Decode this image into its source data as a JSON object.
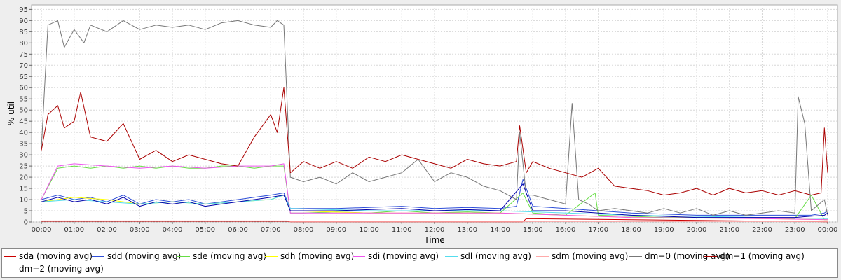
{
  "chart_data": {
    "type": "line",
    "xlabel": "Time",
    "ylabel": "% util",
    "ylim": [
      0,
      97
    ],
    "yticks": [
      0,
      5,
      10,
      15,
      20,
      25,
      30,
      35,
      40,
      45,
      50,
      55,
      60,
      65,
      70,
      75,
      80,
      85,
      90,
      95
    ],
    "xlim": [
      -0.3,
      24.3
    ],
    "xticks": [
      "00:00",
      "01:00",
      "02:00",
      "03:00",
      "04:00",
      "05:00",
      "06:00",
      "07:00",
      "08:00",
      "09:00",
      "10:00",
      "11:00",
      "12:00",
      "13:00",
      "14:00",
      "15:00",
      "16:00",
      "17:00",
      "18:00",
      "19:00",
      "20:00",
      "21:00",
      "22:00",
      "23:00",
      "00:00"
    ],
    "grid": true,
    "legend_position": "bottom",
    "series": [
      {
        "name": "sda (moving avg)",
        "color": "#cc0000",
        "x": [
          0,
          7.5,
          7.6,
          14.7,
          14.8,
          24
        ],
        "y": [
          0.3,
          0.3,
          0.1,
          0.1,
          1.5,
          0.1
        ]
      },
      {
        "name": "sdd (moving avg)",
        "color": "#2d4ed8",
        "x": [
          0,
          0.5,
          1,
          1.5,
          2,
          2.5,
          3,
          3.5,
          4,
          4.5,
          5,
          5.5,
          6,
          6.5,
          7,
          7.4,
          7.6,
          8,
          9,
          10,
          11,
          12,
          13,
          14,
          14.5,
          14.7,
          15,
          16,
          17,
          18,
          19,
          20,
          21,
          22,
          23,
          23.5,
          23.9,
          24
        ],
        "y": [
          10,
          12,
          10,
          11,
          9,
          12,
          8,
          10,
          9,
          10,
          8,
          9,
          10,
          11,
          12,
          13,
          6,
          6,
          6,
          6.5,
          7,
          6,
          6.5,
          6,
          7,
          19,
          7,
          6,
          5,
          4,
          3.5,
          3,
          3,
          3,
          3,
          3,
          4,
          5
        ]
      },
      {
        "name": "sde (moving avg)",
        "color": "#66dd44",
        "x": [
          0,
          0.5,
          1,
          1.5,
          2,
          2.5,
          3,
          3.5,
          4,
          4.5,
          5,
          5.5,
          6,
          6.5,
          7,
          7.4,
          7.6,
          8,
          9,
          10,
          11,
          12,
          13,
          14,
          14.7,
          15,
          16,
          16.9,
          17,
          18,
          19,
          20,
          21,
          22,
          23,
          23.5,
          23.9,
          24
        ],
        "y": [
          10,
          24,
          25,
          24,
          25,
          24,
          25,
          24,
          25,
          24,
          24,
          25,
          25,
          24,
          25,
          25,
          4,
          4,
          4.5,
          4,
          5,
          4,
          4.5,
          4,
          13,
          4,
          3,
          13,
          3,
          2.5,
          2,
          2,
          1.8,
          1.5,
          1.5,
          12,
          1,
          1
        ]
      },
      {
        "name": "sdh (moving avg)",
        "color": "#ffff00",
        "x": [
          0,
          1,
          2,
          3,
          4,
          5,
          6,
          7,
          7.4,
          7.6,
          10,
          14,
          18,
          22,
          24
        ],
        "y": [
          9,
          11,
          10,
          8,
          9,
          8,
          9,
          10,
          12,
          5,
          4,
          4,
          2,
          1.5,
          1
        ]
      },
      {
        "name": "sdi (moving avg)",
        "color": "#ee55ee",
        "x": [
          0,
          0.5,
          1,
          2,
          3,
          4,
          5,
          6,
          7,
          7.4,
          7.6,
          10,
          14,
          18,
          22,
          24
        ],
        "y": [
          10,
          25,
          26,
          25,
          24,
          25,
          24,
          25,
          25,
          26,
          4,
          4,
          4,
          2,
          1.5,
          1
        ]
      },
      {
        "name": "sdl (moving avg)",
        "color": "#55ddee",
        "x": [
          0,
          1,
          2,
          3,
          4,
          5,
          6,
          7,
          7.4,
          7.6,
          10,
          14,
          18,
          22,
          24
        ],
        "y": [
          9,
          10,
          9,
          8,
          9,
          8,
          9,
          10,
          12,
          6,
          5,
          5,
          3,
          2,
          1.5
        ]
      },
      {
        "name": "sdm (moving avg)",
        "color": "#ffaaaa",
        "x": [
          0,
          7.5,
          7.6,
          24
        ],
        "y": [
          0.5,
          0.5,
          0.2,
          0.2
        ]
      },
      {
        "name": "dm−0 (moving avg)",
        "color": "#777777",
        "x": [
          0,
          0.2,
          0.5,
          0.7,
          1,
          1.3,
          1.5,
          2,
          2.5,
          3,
          3.5,
          4,
          4.5,
          5,
          5.5,
          6,
          6.5,
          7,
          7.2,
          7.4,
          7.6,
          8,
          8.5,
          9,
          9.5,
          10,
          10.5,
          11,
          11.5,
          12,
          12.5,
          13,
          13.5,
          14,
          14.5,
          14.6,
          14.8,
          15,
          15.5,
          16,
          16.2,
          16.4,
          16.7,
          17,
          17.5,
          18,
          18.5,
          19,
          19.5,
          20,
          20.5,
          21,
          21.5,
          22,
          22.5,
          23,
          23.1,
          23.3,
          23.5,
          23.9,
          24
        ],
        "y": [
          33,
          88,
          90,
          78,
          86,
          80,
          88,
          85,
          90,
          86,
          88,
          87,
          88,
          86,
          89,
          90,
          88,
          87,
          90,
          88,
          20,
          18,
          20,
          17,
          22,
          18,
          20,
          22,
          28,
          18,
          22,
          20,
          16,
          14,
          10,
          40,
          12,
          12,
          10,
          8,
          53,
          10,
          8,
          5,
          6,
          5,
          4,
          6,
          4,
          6,
          3,
          5,
          3,
          4,
          5,
          4,
          56,
          44,
          5,
          10,
          3
        ]
      },
      {
        "name": "dm−1 (moving avg)",
        "color": "#aa0000",
        "x": [
          0,
          0.2,
          0.5,
          0.7,
          1,
          1.2,
          1.5,
          2,
          2.5,
          3,
          3.5,
          4,
          4.5,
          5,
          5.5,
          6,
          6.5,
          7,
          7.2,
          7.4,
          7.6,
          8,
          8.5,
          9,
          9.5,
          10,
          10.5,
          11,
          11.5,
          12,
          12.5,
          13,
          13.5,
          14,
          14.5,
          14.6,
          14.8,
          15,
          15.5,
          16,
          16.5,
          17,
          17.5,
          18,
          18.5,
          19,
          19.5,
          20,
          20.5,
          21,
          21.5,
          22,
          22.5,
          23,
          23.5,
          23.8,
          23.9,
          24
        ],
        "y": [
          32,
          48,
          52,
          42,
          45,
          58,
          38,
          36,
          44,
          28,
          32,
          27,
          30,
          28,
          26,
          25,
          38,
          48,
          40,
          60,
          22,
          27,
          24,
          27,
          24,
          29,
          27,
          30,
          28,
          26,
          24,
          28,
          26,
          25,
          27,
          43,
          22,
          27,
          24,
          22,
          20,
          24,
          16,
          15,
          14,
          12,
          13,
          15,
          12,
          15,
          13,
          14,
          12,
          14,
          12,
          13,
          42,
          22
        ]
      },
      {
        "name": "dm−2 (moving avg)",
        "color": "#0000aa",
        "x": [
          0,
          0.5,
          1,
          1.5,
          2,
          2.5,
          3,
          3.5,
          4,
          4.5,
          5,
          5.5,
          6,
          6.5,
          7,
          7.4,
          7.6,
          8,
          9,
          10,
          11,
          12,
          13,
          14,
          14.7,
          15,
          16,
          17,
          18,
          19,
          20,
          21,
          22,
          23,
          23.9,
          24
        ],
        "y": [
          9,
          11,
          9,
          10,
          8,
          11,
          7,
          9,
          8,
          9,
          7,
          8,
          9,
          10,
          11,
          12,
          5,
          5,
          5,
          5.5,
          6,
          5,
          5.5,
          5,
          17,
          5,
          5,
          4,
          3,
          2.5,
          2,
          2,
          2,
          2,
          3,
          4
        ]
      }
    ]
  }
}
